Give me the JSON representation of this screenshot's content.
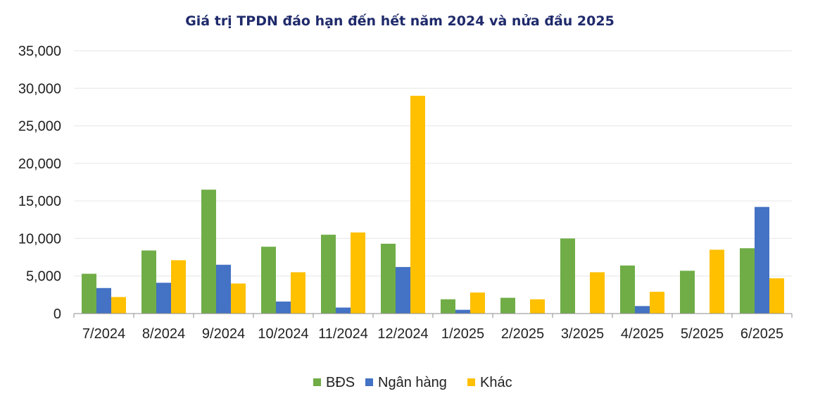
{
  "chart_data": {
    "type": "bar",
    "title": "Giá trị TPDN đáo hạn đến hết năm 2024 và nửa đầu 2025",
    "xlabel": "",
    "ylabel": "",
    "ylim": [
      0,
      35000
    ],
    "yticks": [
      "0",
      "5,000",
      "10,000",
      "15,000",
      "20,000",
      "25,000",
      "30,000",
      "35,000"
    ],
    "ytick_values": [
      0,
      5000,
      10000,
      15000,
      20000,
      25000,
      30000,
      35000
    ],
    "grid": true,
    "legend_position": "bottom",
    "categories": [
      "7/2024",
      "8/2024",
      "9/2024",
      "10/2024",
      "11/2024",
      "12/2024",
      "1/2025",
      "2/2025",
      "3/2025",
      "4/2025",
      "5/2025",
      "6/2025"
    ],
    "series": [
      {
        "name": "BĐS",
        "color": "#70ad47",
        "values": [
          5300,
          8400,
          16500,
          8900,
          10500,
          9300,
          1900,
          2100,
          10000,
          6400,
          5700,
          8700
        ]
      },
      {
        "name": "Ngân hàng",
        "color": "#4472c4",
        "values": [
          3400,
          4100,
          6500,
          1600,
          800,
          6200,
          500,
          0,
          0,
          1000,
          0,
          14200
        ]
      },
      {
        "name": "Khác",
        "color": "#ffc000",
        "values": [
          2200,
          7100,
          4000,
          5500,
          10800,
          29000,
          2800,
          1900,
          5500,
          2900,
          8500,
          4700
        ]
      }
    ]
  }
}
